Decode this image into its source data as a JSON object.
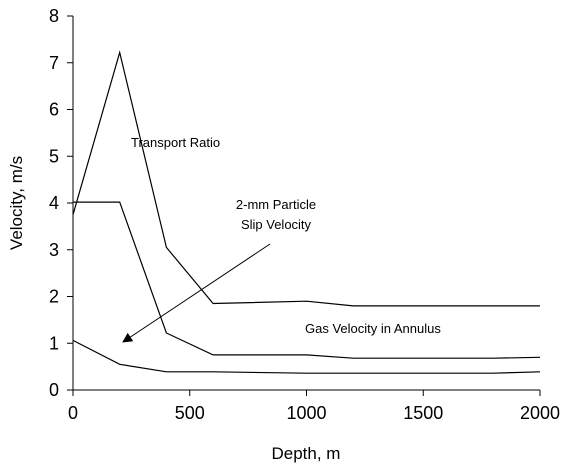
{
  "chart_data": {
    "type": "line",
    "title": "",
    "xlabel": "Depth, m",
    "ylabel": "Velocity, m/s",
    "xlim": [
      0,
      2000
    ],
    "ylim": [
      0,
      8
    ],
    "xticks": [
      0,
      500,
      1000,
      1500,
      2000
    ],
    "yticks": [
      0,
      1,
      2,
      3,
      4,
      5,
      6,
      7,
      8
    ],
    "xtick_labels": [
      "0",
      "500",
      "1000",
      "1500",
      "2000"
    ],
    "ytick_labels": [
      "0",
      "1",
      "2",
      "3",
      "4",
      "5",
      "6",
      "7",
      "8"
    ],
    "grid": false,
    "legend": "none",
    "line_color": "#000000",
    "series": [
      {
        "x": [
          0,
          200,
          400,
          600,
          1000,
          1200,
          1800,
          2000
        ],
        "y": [
          3.75,
          7.22,
          3.05,
          1.85,
          1.9,
          1.8,
          1.8,
          1.8
        ]
      },
      {
        "x": [
          0,
          200,
          400,
          600,
          1000,
          1200,
          1800,
          2000
        ],
        "y": [
          4.02,
          4.02,
          1.22,
          0.75,
          0.75,
          0.68,
          0.68,
          0.7
        ]
      },
      {
        "x": [
          0,
          200,
          400,
          600,
          1000,
          1200,
          1800,
          2000
        ],
        "y": [
          1.06,
          0.55,
          0.39,
          0.39,
          0.36,
          0.36,
          0.36,
          0.39
        ]
      }
    ],
    "annotations": {
      "transport_ratio": "Transport Ratio",
      "particle_line1": "2-mm Particle",
      "particle_line2": "Slip Velocity",
      "gas_velocity": "Gas Velocity in Annulus"
    }
  }
}
